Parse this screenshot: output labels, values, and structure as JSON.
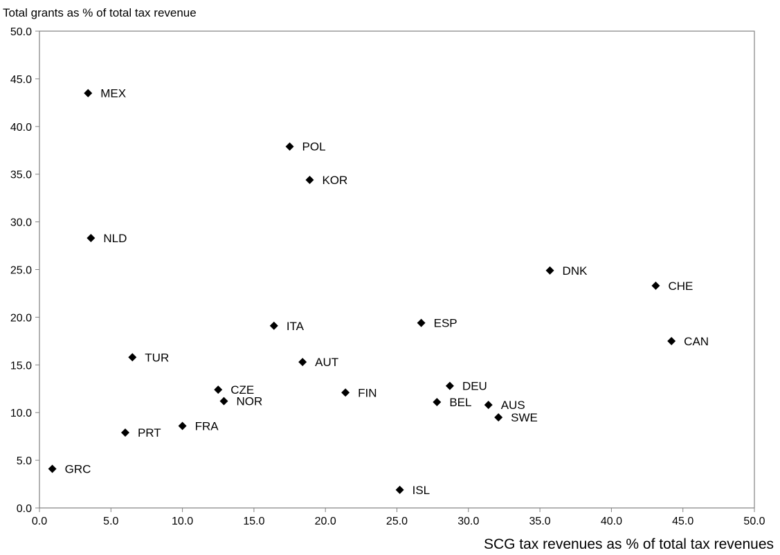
{
  "chart_data": {
    "type": "scatter",
    "title": "",
    "xlabel": "SCG tax revenues as % of total tax revenues",
    "ylabel": "Total grants as % of total tax revenue",
    "xlim": [
      0,
      50
    ],
    "ylim": [
      0,
      50
    ],
    "x_ticks": [
      "0.0",
      "5.0",
      "10.0",
      "15.0",
      "20.0",
      "25.0",
      "30.0",
      "35.0",
      "40.0",
      "45.0",
      "50.0"
    ],
    "y_ticks": [
      "0.0",
      "5.0",
      "10.0",
      "15.0",
      "20.0",
      "25.0",
      "30.0",
      "35.0",
      "40.0",
      "45.0",
      "50.0"
    ],
    "grid": false,
    "legend": "none",
    "marker": "diamond",
    "marker_color": "#000000",
    "points": [
      {
        "label": "MEX",
        "x": 3.4,
        "y": 43.5
      },
      {
        "label": "POL",
        "x": 17.5,
        "y": 37.9
      },
      {
        "label": "KOR",
        "x": 18.9,
        "y": 34.4
      },
      {
        "label": "NLD",
        "x": 3.6,
        "y": 28.3
      },
      {
        "label": "DNK",
        "x": 35.7,
        "y": 24.9
      },
      {
        "label": "CHE",
        "x": 43.1,
        "y": 23.3
      },
      {
        "label": "ITA",
        "x": 16.4,
        "y": 19.1
      },
      {
        "label": "ESP",
        "x": 26.7,
        "y": 19.4
      },
      {
        "label": "CAN",
        "x": 44.2,
        "y": 17.5
      },
      {
        "label": "TUR",
        "x": 6.5,
        "y": 15.8
      },
      {
        "label": "AUT",
        "x": 18.4,
        "y": 15.3
      },
      {
        "label": "CZE",
        "x": 12.5,
        "y": 12.4
      },
      {
        "label": "NOR",
        "x": 12.9,
        "y": 11.2
      },
      {
        "label": "FIN",
        "x": 21.4,
        "y": 12.1
      },
      {
        "label": "DEU",
        "x": 28.7,
        "y": 12.8
      },
      {
        "label": "BEL",
        "x": 27.8,
        "y": 11.1
      },
      {
        "label": "AUS",
        "x": 31.4,
        "y": 10.8
      },
      {
        "label": "SWE",
        "x": 32.1,
        "y": 9.5
      },
      {
        "label": "PRT",
        "x": 6.0,
        "y": 7.9
      },
      {
        "label": "FRA",
        "x": 10.0,
        "y": 8.6
      },
      {
        "label": "GRC",
        "x": 0.9,
        "y": 4.1
      },
      {
        "label": "ISL",
        "x": 25.2,
        "y": 1.9
      }
    ]
  }
}
